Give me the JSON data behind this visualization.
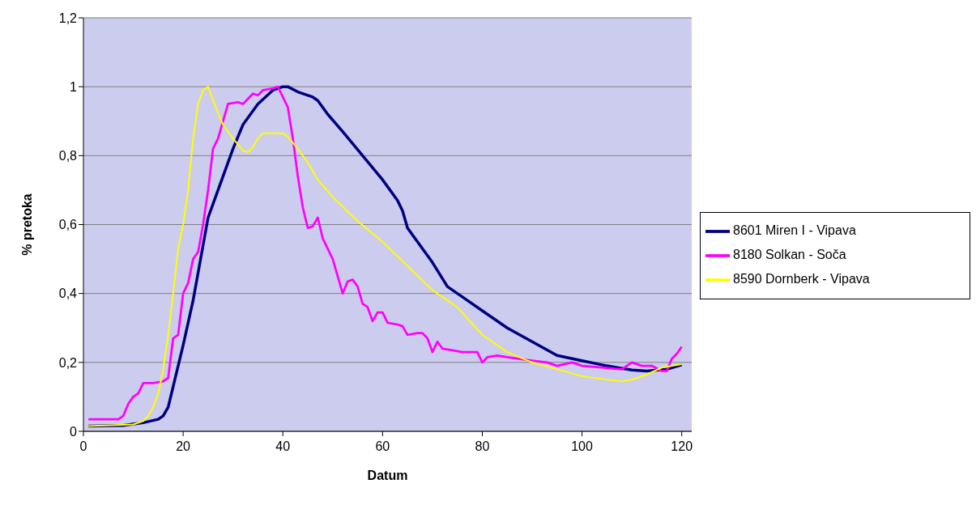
{
  "chart_data": {
    "type": "line",
    "xlabel": "Datum",
    "ylabel": "% pretoka",
    "xlim": [
      0,
      122
    ],
    "xticks": [
      0,
      20,
      40,
      60,
      80,
      100,
      120
    ],
    "ylim": [
      0,
      1.2
    ],
    "yticks": [
      {
        "value": 0,
        "label": "0"
      },
      {
        "value": 0.2,
        "label": "0,2"
      },
      {
        "value": 0.4,
        "label": "0,4"
      },
      {
        "value": 0.6,
        "label": "0,6"
      },
      {
        "value": 0.8,
        "label": "0,8"
      },
      {
        "value": 1,
        "label": "1"
      },
      {
        "value": 1.2,
        "label": "1,2"
      }
    ],
    "grid": "y",
    "legend": "right",
    "marker": "none",
    "line_style": "solid",
    "series": [
      {
        "name": "8601 Miren I - Vipava",
        "color": "#000080",
        "x": [
          1,
          8,
          12,
          15,
          16,
          17,
          18,
          20,
          22,
          24,
          25,
          27,
          30,
          32,
          35,
          38,
          40,
          41,
          43,
          46,
          47,
          49,
          52,
          56,
          60,
          63,
          64,
          65,
          68,
          70,
          73,
          76,
          80,
          85,
          90,
          95,
          100,
          105,
          110,
          113,
          117,
          120
        ],
        "values": [
          0.015,
          0.017,
          0.025,
          0.035,
          0.045,
          0.07,
          0.13,
          0.25,
          0.38,
          0.54,
          0.62,
          0.7,
          0.82,
          0.89,
          0.95,
          0.99,
          1.0,
          1.0,
          0.985,
          0.97,
          0.96,
          0.92,
          0.87,
          0.8,
          0.73,
          0.67,
          0.64,
          0.59,
          0.53,
          0.49,
          0.42,
          0.39,
          0.35,
          0.3,
          0.26,
          0.22,
          0.205,
          0.19,
          0.178,
          0.175,
          0.18,
          0.193
        ]
      },
      {
        "name": "8180 Solkan - Soča",
        "color": "#ff00ff",
        "x": [
          1,
          7,
          8,
          9,
          10,
          11,
          12,
          14,
          16,
          17,
          18,
          19,
          20,
          21,
          22,
          23,
          24,
          25,
          26,
          27,
          29,
          31,
          32,
          34,
          35,
          36,
          38,
          39,
          40,
          41,
          42,
          43,
          44,
          45,
          46,
          47,
          48,
          50,
          52,
          53,
          54,
          55,
          56,
          57,
          58,
          59,
          60,
          61,
          63,
          64,
          65,
          67,
          68,
          69,
          70,
          71,
          72,
          74,
          76,
          79,
          80,
          81,
          83,
          85,
          90,
          93,
          95,
          98,
          100,
          104,
          108,
          110,
          112,
          114,
          116,
          117,
          118,
          119,
          120
        ],
        "values": [
          0.035,
          0.035,
          0.045,
          0.08,
          0.1,
          0.11,
          0.14,
          0.14,
          0.145,
          0.155,
          0.27,
          0.28,
          0.4,
          0.43,
          0.5,
          0.52,
          0.6,
          0.7,
          0.82,
          0.85,
          0.95,
          0.955,
          0.95,
          0.98,
          0.975,
          0.99,
          0.995,
          1.0,
          0.97,
          0.94,
          0.85,
          0.74,
          0.65,
          0.59,
          0.595,
          0.62,
          0.56,
          0.5,
          0.4,
          0.435,
          0.44,
          0.42,
          0.37,
          0.36,
          0.32,
          0.345,
          0.345,
          0.315,
          0.31,
          0.305,
          0.28,
          0.285,
          0.285,
          0.27,
          0.23,
          0.26,
          0.24,
          0.235,
          0.23,
          0.23,
          0.2,
          0.215,
          0.22,
          0.215,
          0.205,
          0.2,
          0.19,
          0.2,
          0.19,
          0.185,
          0.18,
          0.2,
          0.19,
          0.19,
          0.175,
          0.175,
          0.21,
          0.225,
          0.245
        ]
      },
      {
        "name": "8590 Dornberk - Vipava",
        "color": "#ffff00",
        "x": [
          1,
          10,
          12,
          13,
          14,
          15,
          16,
          17,
          18,
          19,
          20,
          21,
          22,
          23,
          24,
          25,
          26,
          28,
          30,
          32,
          33,
          34,
          35,
          36,
          38,
          40,
          41,
          43,
          45,
          47,
          50,
          55,
          60,
          65,
          70,
          75,
          80,
          85,
          90,
          95,
          100,
          105,
          108,
          110,
          113,
          116,
          120
        ],
        "values": [
          0.015,
          0.02,
          0.03,
          0.045,
          0.07,
          0.11,
          0.18,
          0.28,
          0.4,
          0.53,
          0.6,
          0.7,
          0.85,
          0.95,
          0.99,
          1.0,
          0.96,
          0.89,
          0.85,
          0.815,
          0.81,
          0.825,
          0.85,
          0.865,
          0.865,
          0.865,
          0.855,
          0.82,
          0.78,
          0.73,
          0.68,
          0.61,
          0.55,
          0.48,
          0.41,
          0.36,
          0.28,
          0.23,
          0.2,
          0.18,
          0.16,
          0.15,
          0.145,
          0.15,
          0.165,
          0.185,
          0.195
        ]
      }
    ]
  }
}
